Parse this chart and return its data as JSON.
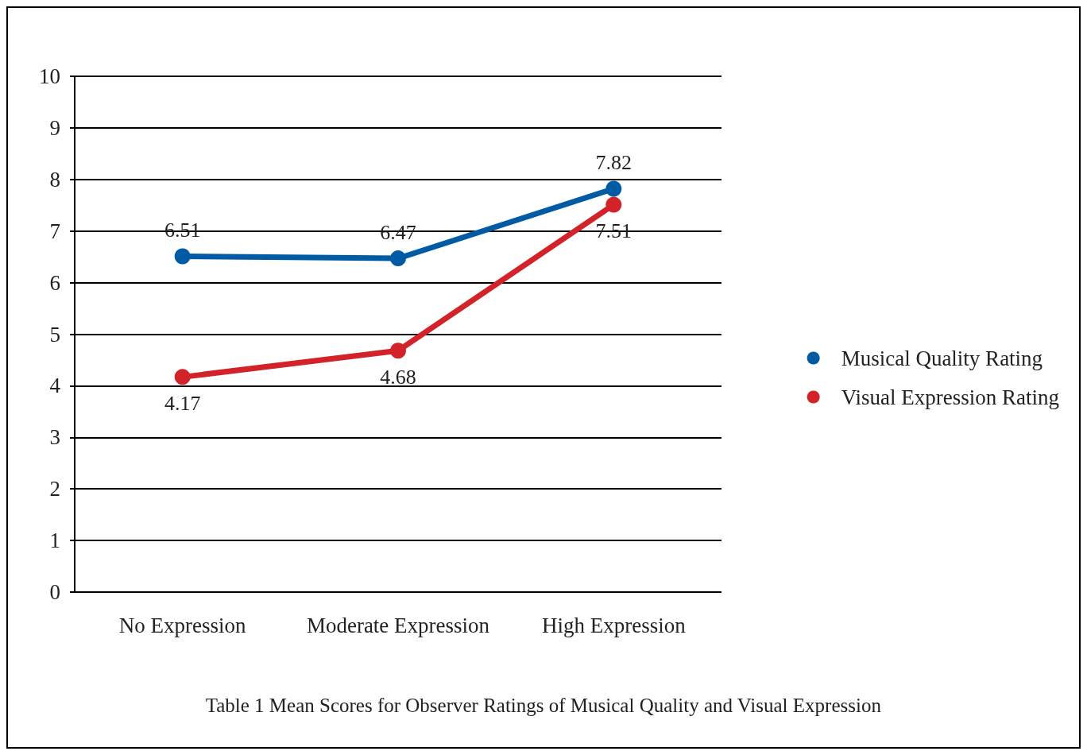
{
  "chart_data": {
    "type": "line",
    "categories": [
      "No Expression",
      "Moderate Expression",
      "High Expression"
    ],
    "series": [
      {
        "name": "Musical Quality Rating",
        "color": "#005ba4",
        "values": [
          6.51,
          6.47,
          7.82
        ]
      },
      {
        "name": "Visual Expression Rating",
        "color": "#d2232a",
        "values": [
          4.17,
          4.68,
          7.51
        ]
      }
    ],
    "ylim": [
      0,
      10
    ],
    "yticks": [
      0,
      1,
      2,
      3,
      4,
      5,
      6,
      7,
      8,
      9,
      10
    ],
    "grid": "y",
    "legend": "right",
    "marker": "circle",
    "line_style": "solid",
    "data_labels": true,
    "annotations": [
      "Table 1 Mean Scores for Observer Ratings of Musical Quality and Visual Expression"
    ]
  }
}
